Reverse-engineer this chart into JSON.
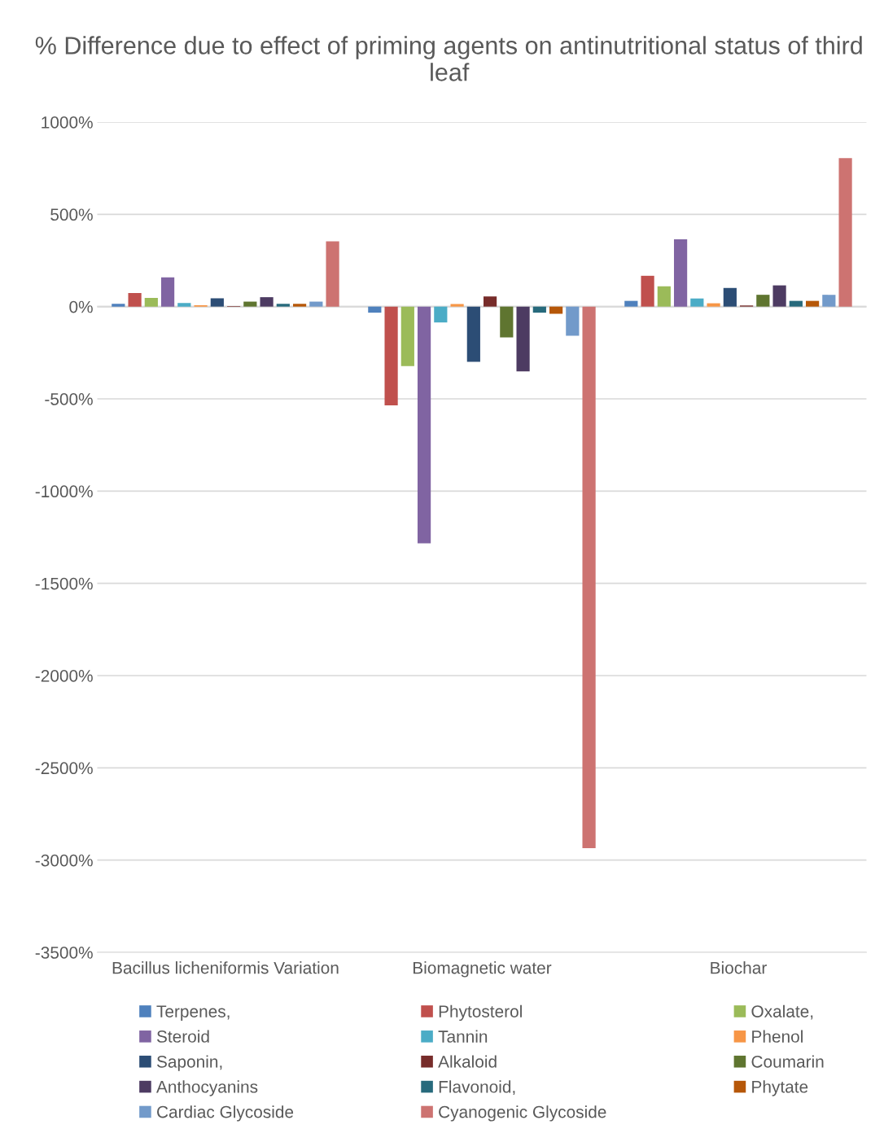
{
  "chart_data": {
    "type": "bar",
    "title": "% Difference due to effect of priming agents on antinutritional status of third leaf",
    "categories": [
      "Bacillus licheniformis Variation",
      "Biomagnetic water",
      "Biochar"
    ],
    "ylim": [
      -3500,
      1000
    ],
    "yticks": [
      {
        "value": 1000,
        "label": "1000%"
      },
      {
        "value": 500,
        "label": "500%"
      },
      {
        "value": 0,
        "label": "0%"
      },
      {
        "value": -500,
        "label": "-500%"
      },
      {
        "value": -1000,
        "label": "-1000%"
      },
      {
        "value": -1500,
        "label": "-1500%"
      },
      {
        "value": -2000,
        "label": "-2000%"
      },
      {
        "value": -2500,
        "label": "-2500%"
      },
      {
        "value": -3000,
        "label": "-3000%"
      },
      {
        "value": -3500,
        "label": "-3500%"
      }
    ],
    "grid": "y",
    "legend": "bottom",
    "series": [
      {
        "name": "Terpenes,",
        "color": "#4f81bd",
        "values": [
          15,
          -33,
          31
        ]
      },
      {
        "name": "Phytosterol",
        "color": "#c0504d",
        "values": [
          73,
          -535,
          167
        ]
      },
      {
        "name": "Oxalate,",
        "color": "#9bbb59",
        "values": [
          47,
          -322,
          110
        ]
      },
      {
        "name": "Steroid",
        "color": "#8064a2",
        "values": [
          158,
          -1283,
          365
        ]
      },
      {
        "name": "Tannin",
        "color": "#4bacc6",
        "values": [
          19,
          -86,
          44
        ]
      },
      {
        "name": "Phenol",
        "color": "#f79646",
        "values": [
          7,
          14,
          18
        ]
      },
      {
        "name": "Saponin,",
        "color": "#2c4d75",
        "values": [
          45,
          -299,
          101
        ]
      },
      {
        "name": "Alkaloid",
        "color": "#772c2a",
        "values": [
          3,
          55,
          6
        ]
      },
      {
        "name": "Coumarin",
        "color": "#5f7530",
        "values": [
          27,
          -167,
          64
        ]
      },
      {
        "name": "Anthocyanins",
        "color": "#4d3b62",
        "values": [
          51,
          -351,
          115
        ]
      },
      {
        "name": "Flavonoid,",
        "color": "#276a7c",
        "values": [
          15,
          -33,
          31
        ]
      },
      {
        "name": "Phytate",
        "color": "#b65708",
        "values": [
          15,
          -39,
          31
        ]
      },
      {
        "name": "Cardiac Glycoside",
        "color": "#729aca",
        "values": [
          27,
          -158,
          64
        ]
      },
      {
        "name": "Cyanogenic Glycoside",
        "color": "#cd7371",
        "values": [
          354,
          -2935,
          805
        ]
      }
    ]
  }
}
